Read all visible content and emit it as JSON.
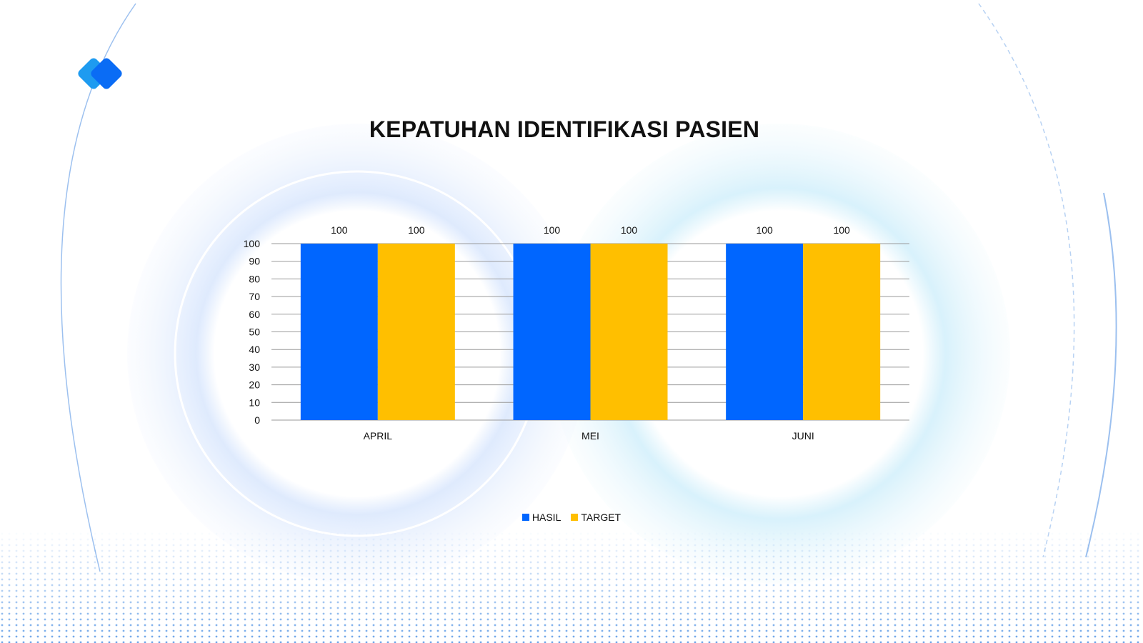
{
  "colors": {
    "hasil": "#0066FF",
    "target": "#FFBF00",
    "grid": "#9a9a9a",
    "logo_back": "#1e9bf0",
    "logo_front": "#0a6cf5"
  },
  "logo": {
    "icon": "overlapping-diamonds-logo"
  },
  "chart_data": {
    "type": "bar",
    "title": "KEPATUHAN IDENTIFIKASI PASIEN",
    "categories": [
      "APRIL",
      "MEI",
      "JUNI"
    ],
    "series": [
      {
        "name": "HASIL",
        "values": [
          100,
          100,
          100
        ],
        "color": "#0066FF"
      },
      {
        "name": "TARGET",
        "values": [
          100,
          100,
          100
        ],
        "color": "#FFBF00"
      }
    ],
    "ylim": [
      0,
      100
    ],
    "yticks": [
      0,
      10,
      20,
      30,
      40,
      50,
      60,
      70,
      80,
      90,
      100
    ],
    "grid": true,
    "data_labels": true,
    "legend_position": "bottom"
  }
}
